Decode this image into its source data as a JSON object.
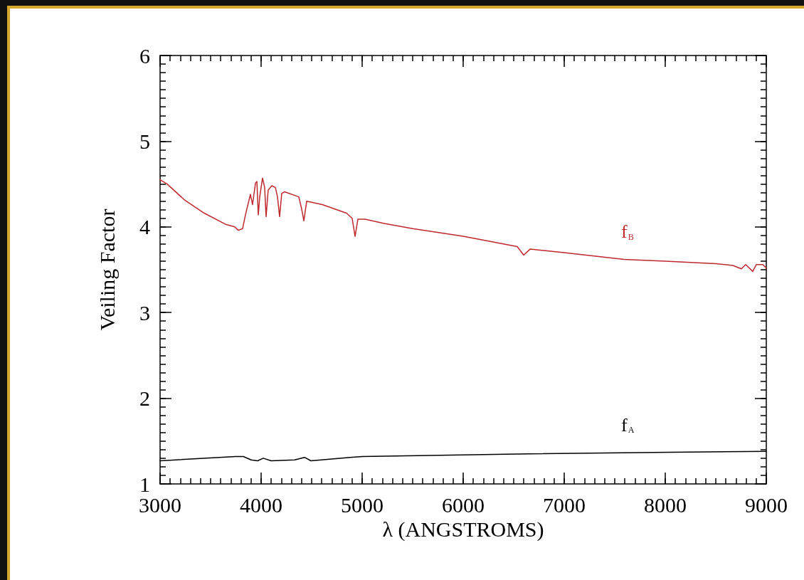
{
  "chart_data": {
    "type": "line",
    "xlabel": "λ (ANGSTROMS)",
    "ylabel": "Veiling Factor",
    "xlim": [
      3000,
      9000
    ],
    "xticks": [
      3000,
      4000,
      5000,
      6000,
      7000,
      8000,
      9000
    ],
    "ylim": [
      1,
      6
    ],
    "yticks": [
      1,
      2,
      3,
      4,
      5,
      6
    ],
    "grid": false,
    "legend": false,
    "marker": "none",
    "line_style": "solid",
    "series": [
      {
        "name": "f$_{B}$",
        "color": "#c0282d",
        "x": [
          3000,
          3070,
          3246,
          3437,
          3648,
          3739,
          3775,
          3817,
          3845,
          3894,
          3915,
          3944,
          3958,
          3972,
          3986,
          4014,
          4035,
          4049,
          4070,
          4106,
          4141,
          4162,
          4183,
          4204,
          4232,
          4373,
          4401,
          4423,
          4451,
          4606,
          4845,
          4901,
          4930,
          4958,
          5028,
          5218,
          5500,
          6000,
          6535,
          6599,
          6662,
          7000,
          7592,
          8000,
          8500,
          8669,
          8754,
          8796,
          8866,
          8901,
          8965,
          9000
        ],
        "values": [
          4.55,
          4.5,
          4.31,
          4.16,
          4.03,
          4.0,
          3.96,
          3.98,
          4.14,
          4.38,
          4.26,
          4.51,
          4.53,
          4.14,
          4.35,
          4.57,
          4.46,
          4.12,
          4.43,
          4.48,
          4.46,
          4.35,
          4.12,
          4.39,
          4.41,
          4.35,
          4.21,
          4.07,
          4.3,
          4.26,
          4.16,
          4.1,
          3.89,
          4.09,
          4.09,
          4.04,
          3.98,
          3.89,
          3.77,
          3.67,
          3.74,
          3.7,
          3.62,
          3.6,
          3.57,
          3.55,
          3.51,
          3.56,
          3.48,
          3.56,
          3.56,
          3.52
        ]
      },
      {
        "name": "f$_{A}$",
        "color": "#000000",
        "x": [
          3000,
          3746,
          3824,
          3901,
          3965,
          4021,
          4099,
          4331,
          4430,
          4493,
          4880,
          5000,
          6641,
          8049,
          9000
        ],
        "values": [
          1.27,
          1.32,
          1.32,
          1.28,
          1.27,
          1.3,
          1.27,
          1.28,
          1.31,
          1.27,
          1.31,
          1.32,
          1.35,
          1.37,
          1.38
        ]
      }
    ]
  }
}
